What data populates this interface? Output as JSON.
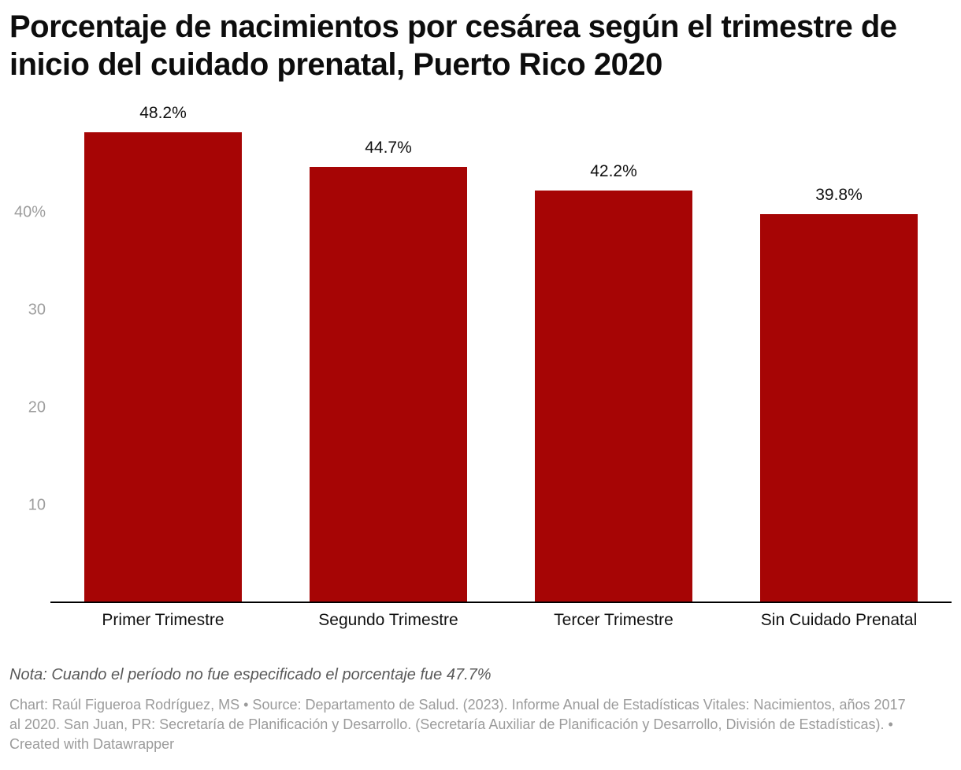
{
  "chart_data": {
    "type": "bar",
    "title": "Porcentaje de nacimientos por cesárea según el trimestre de inicio del cuidado prenatal, Puerto Rico 2020",
    "categories": [
      "Primer Trimestre",
      "Segundo Trimestre",
      "Tercer Trimestre",
      "Sin Cuidado Prenatal"
    ],
    "values": [
      48.2,
      44.7,
      42.2,
      39.8
    ],
    "value_labels": [
      "48.2%",
      "44.7%",
      "42.2%",
      "39.8%"
    ],
    "y_ticks": [
      {
        "value": 10,
        "label": "10"
      },
      {
        "value": 20,
        "label": "20"
      },
      {
        "value": 30,
        "label": "30"
      },
      {
        "value": 40,
        "label": "40%"
      }
    ],
    "ylim": [
      0,
      50
    ],
    "xlabel": "",
    "ylabel": "",
    "grid": "off",
    "legend": "none",
    "bar_color": "#a60505"
  },
  "note": {
    "text": "Nota: Cuando el período no fue especificado el porcentaje fue 47.7%"
  },
  "footer": {
    "text": "Chart: Raúl Figueroa Rodríguez, MS • Source: Departamento de Salud. (2023). Informe Anual de Estadísticas Vitales: Nacimientos, años 2017 al 2020. San Juan, PR: Secretaría de Planificación y Desarrollo. (Secretaría Auxiliar de Planificación y Desarrollo, División de Estadísticas).  • Created with Datawrapper"
  }
}
